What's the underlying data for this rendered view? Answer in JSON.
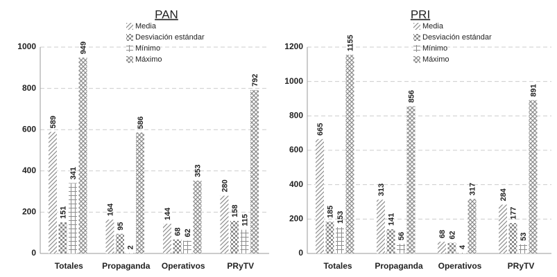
{
  "chart_data": [
    {
      "type": "bar",
      "title": "PAN",
      "categories": [
        "Totales",
        "Propaganda",
        "Operativos",
        "PRyTV"
      ],
      "series": [
        {
          "name": "Media",
          "color": "#8c8c8c",
          "values": [
            589,
            164,
            144,
            280
          ]
        },
        {
          "name": "Desviación estándar",
          "color": "#8c8c8c",
          "values": [
            151,
            95,
            68,
            158
          ]
        },
        {
          "name": "Mínimo",
          "color": "#8c8c8c",
          "values": [
            341,
            2,
            62,
            115
          ]
        },
        {
          "name": "Máximo",
          "color": "#8c8c8c",
          "values": [
            949,
            586,
            353,
            792
          ]
        }
      ],
      "ylim": [
        0,
        1000
      ],
      "yticks": [
        0,
        200,
        400,
        600,
        800,
        1000
      ],
      "grid": true
    },
    {
      "type": "bar",
      "title": "PRI",
      "categories": [
        "Totales",
        "Propaganda",
        "Operativos",
        "PRyTV"
      ],
      "series": [
        {
          "name": "Media",
          "color": "#8c8c8c",
          "values": [
            665,
            313,
            68,
            284
          ]
        },
        {
          "name": "Desviación estándar",
          "color": "#8c8c8c",
          "values": [
            185,
            141,
            62,
            177
          ]
        },
        {
          "name": "Mínimo",
          "color": "#8c8c8c",
          "values": [
            153,
            56,
            4,
            53
          ]
        },
        {
          "name": "Máximo",
          "color": "#8c8c8c",
          "values": [
            1155,
            856,
            317,
            891
          ]
        }
      ],
      "ylim": [
        0,
        1200
      ],
      "yticks": [
        0,
        200,
        400,
        600,
        800,
        1000,
        1200
      ],
      "grid": true
    }
  ]
}
